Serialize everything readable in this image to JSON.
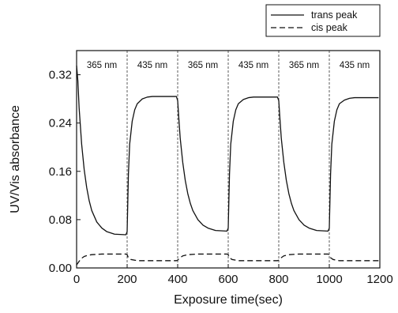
{
  "chart_data": {
    "type": "line",
    "title": "",
    "xlabel": "Exposure time(sec)",
    "ylabel": "UV/Vis absorbance",
    "xlim": [
      0,
      1200
    ],
    "ylim": [
      0.0,
      0.36
    ],
    "xticks": [
      0,
      200,
      400,
      600,
      800,
      1000,
      1200
    ],
    "xtick_labels": [
      "0",
      "200",
      "400",
      "600",
      "800",
      "1000",
      "1200"
    ],
    "yticks": [
      0.0,
      0.08,
      0.16,
      0.24,
      0.32
    ],
    "ytick_labels": [
      "0.00",
      "0.08",
      "0.16",
      "0.24",
      "0.32"
    ],
    "grid": false,
    "legend_position": "top-right, above plot",
    "segment_boundaries": [
      200,
      400,
      600,
      800,
      1000
    ],
    "segments": [
      {
        "label": "365 nm",
        "x_start": 0,
        "x_end": 200
      },
      {
        "label": "435 nm",
        "x_start": 200,
        "x_end": 400
      },
      {
        "label": "365 nm",
        "x_start": 400,
        "x_end": 600
      },
      {
        "label": "435 nm",
        "x_start": 600,
        "x_end": 800
      },
      {
        "label": "365 nm",
        "x_start": 800,
        "x_end": 1000
      },
      {
        "label": "435 nm",
        "x_start": 1000,
        "x_end": 1200
      }
    ],
    "series": [
      {
        "name": "trans peak",
        "style": "solid",
        "points": [
          [
            0,
            0.335
          ],
          [
            5,
            0.31
          ],
          [
            10,
            0.265
          ],
          [
            20,
            0.205
          ],
          [
            30,
            0.163
          ],
          [
            40,
            0.133
          ],
          [
            50,
            0.111
          ],
          [
            60,
            0.095
          ],
          [
            80,
            0.076
          ],
          [
            100,
            0.066
          ],
          [
            120,
            0.06
          ],
          [
            150,
            0.056
          ],
          [
            195,
            0.055
          ],
          [
            200,
            0.06
          ],
          [
            205,
            0.155
          ],
          [
            210,
            0.205
          ],
          [
            220,
            0.243
          ],
          [
            230,
            0.262
          ],
          [
            240,
            0.272
          ],
          [
            260,
            0.28
          ],
          [
            280,
            0.283
          ],
          [
            300,
            0.284
          ],
          [
            395,
            0.284
          ],
          [
            400,
            0.277
          ],
          [
            405,
            0.245
          ],
          [
            410,
            0.215
          ],
          [
            420,
            0.175
          ],
          [
            430,
            0.145
          ],
          [
            440,
            0.123
          ],
          [
            450,
            0.107
          ],
          [
            460,
            0.095
          ],
          [
            480,
            0.08
          ],
          [
            500,
            0.071
          ],
          [
            520,
            0.066
          ],
          [
            550,
            0.062
          ],
          [
            595,
            0.061
          ],
          [
            600,
            0.066
          ],
          [
            605,
            0.155
          ],
          [
            610,
            0.205
          ],
          [
            620,
            0.243
          ],
          [
            630,
            0.262
          ],
          [
            640,
            0.272
          ],
          [
            660,
            0.279
          ],
          [
            680,
            0.282
          ],
          [
            700,
            0.283
          ],
          [
            795,
            0.283
          ],
          [
            800,
            0.277
          ],
          [
            805,
            0.245
          ],
          [
            810,
            0.215
          ],
          [
            820,
            0.175
          ],
          [
            830,
            0.145
          ],
          [
            840,
            0.123
          ],
          [
            850,
            0.107
          ],
          [
            860,
            0.095
          ],
          [
            880,
            0.08
          ],
          [
            900,
            0.071
          ],
          [
            920,
            0.066
          ],
          [
            950,
            0.062
          ],
          [
            995,
            0.061
          ],
          [
            1000,
            0.066
          ],
          [
            1005,
            0.155
          ],
          [
            1010,
            0.205
          ],
          [
            1020,
            0.243
          ],
          [
            1030,
            0.262
          ],
          [
            1040,
            0.272
          ],
          [
            1060,
            0.278
          ],
          [
            1080,
            0.281
          ],
          [
            1100,
            0.282
          ],
          [
            1195,
            0.282
          ]
        ]
      },
      {
        "name": "cis peak",
        "style": "dashed",
        "points": [
          [
            0,
            0.005
          ],
          [
            10,
            0.011
          ],
          [
            20,
            0.016
          ],
          [
            30,
            0.019
          ],
          [
            45,
            0.021
          ],
          [
            60,
            0.022
          ],
          [
            100,
            0.023
          ],
          [
            195,
            0.023
          ],
          [
            200,
            0.022
          ],
          [
            205,
            0.017
          ],
          [
            215,
            0.014
          ],
          [
            240,
            0.012
          ],
          [
            300,
            0.012
          ],
          [
            395,
            0.012
          ],
          [
            400,
            0.013
          ],
          [
            410,
            0.017
          ],
          [
            420,
            0.02
          ],
          [
            440,
            0.022
          ],
          [
            480,
            0.023
          ],
          [
            595,
            0.023
          ],
          [
            600,
            0.022
          ],
          [
            605,
            0.017
          ],
          [
            615,
            0.014
          ],
          [
            640,
            0.012
          ],
          [
            700,
            0.012
          ],
          [
            795,
            0.012
          ],
          [
            800,
            0.013
          ],
          [
            810,
            0.017
          ],
          [
            820,
            0.02
          ],
          [
            840,
            0.022
          ],
          [
            880,
            0.023
          ],
          [
            995,
            0.023
          ],
          [
            1000,
            0.022
          ],
          [
            1005,
            0.017
          ],
          [
            1015,
            0.014
          ],
          [
            1040,
            0.012
          ],
          [
            1100,
            0.012
          ],
          [
            1195,
            0.012
          ]
        ]
      }
    ]
  }
}
